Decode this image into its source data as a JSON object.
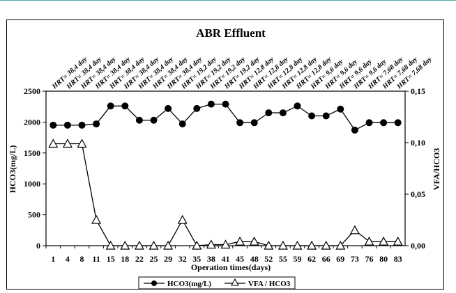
{
  "chart_data": {
    "type": "line",
    "title": "ABR Effluent",
    "xlabel": "Operation times(days)",
    "ylabel_left": "HCO3(mg/L)",
    "ylabel_right": "VFA/HCO3",
    "categories": [
      "1",
      "4",
      "8",
      "11",
      "15",
      "18",
      "22",
      "25",
      "29",
      "32",
      "35",
      "38",
      "41",
      "45",
      "48",
      "52",
      "55",
      "59",
      "62",
      "66",
      "69",
      "73",
      "76",
      "80",
      "83"
    ],
    "hrt_labels": [
      "HRT= 38,4 day",
      "HRT= 38,4 day",
      "HRT= 38,4 day",
      "HRT= 38,4 day",
      "HRT= 38,4 day",
      "HRT= 38,4 day",
      "HRT= 38,4 day",
      "HRT= 38,4 day",
      "HRT= 38,4 day",
      "HRT= 19,2 day",
      "HRT= 19,2 day",
      "HRT= 19,2 day",
      "HRT= 19,2 day",
      "HRT= 12,8 day",
      "HRT= 12,8 day",
      "HRT= 12,8 day",
      "HRT= 12,8 day",
      "HRT= 12,8 day",
      "HRT= 9,6 day",
      "HRT= 9,6 day",
      "HRT= 9,6 day",
      "HRT= 9,6 day",
      "HRT= 7,68 day",
      "HRT= 7,68 day",
      "HRT= 7,68 day"
    ],
    "y_left": {
      "min": 0,
      "max": 2500,
      "ticks": [
        "0",
        "500",
        "1000",
        "1500",
        "2000",
        "2500"
      ]
    },
    "y_right": {
      "min": 0,
      "max": 0.15,
      "ticks": [
        "0,00",
        "0,05",
        "0,10",
        "0,15"
      ]
    },
    "series": [
      {
        "name": "HCO3(mg/L)",
        "axis": "left",
        "marker": "filled-circle",
        "values": [
          1950,
          1950,
          1950,
          1970,
          2260,
          2260,
          2030,
          2030,
          2220,
          1970,
          2220,
          2290,
          2290,
          1990,
          1990,
          2150,
          2150,
          2260,
          2100,
          2100,
          2210,
          1870,
          1990,
          1990,
          1990
        ]
      },
      {
        "name": "VFA / HCO3",
        "axis": "right",
        "marker": "open-triangle",
        "values": [
          0.099,
          0.099,
          0.099,
          0.025,
          0.0,
          0.0,
          0.0,
          0.0,
          0.0,
          0.025,
          0.0,
          0.001,
          0.001,
          0.004,
          0.004,
          0.0,
          0.0,
          0.0,
          0.0,
          0.0,
          0.0,
          0.015,
          0.004,
          0.004,
          0.004
        ]
      }
    ],
    "legend_position": "bottom",
    "grid": false
  }
}
